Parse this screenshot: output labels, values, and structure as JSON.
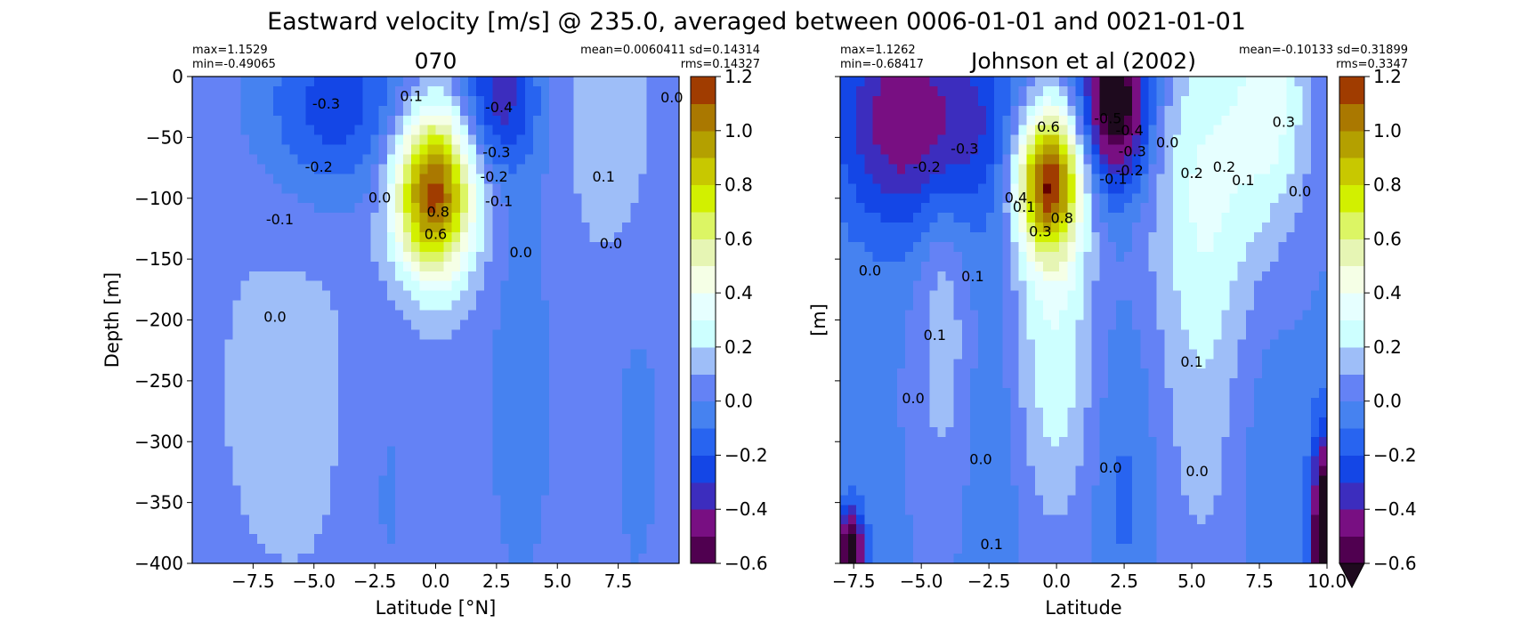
{
  "figure": {
    "title": "Eastward velocity [m/s] @ 235.0, averaged between 0006-01-01 and 0021-01-01"
  },
  "chart_data": [
    {
      "type": "heatmap",
      "subtype": "filled-contour",
      "title": "070",
      "stats_left": [
        "max=1.1529",
        "min=-0.49065"
      ],
      "stats_right": [
        "mean=0.0060411 sd=0.14314",
        "rms=0.14327"
      ],
      "xlabel": "Latitude [°N]",
      "ylabel": "Depth [m]",
      "xlim": [
        -10,
        10
      ],
      "ylim": [
        -400,
        0
      ],
      "xticks": [
        -7.5,
        -5.0,
        -2.5,
        0.0,
        2.5,
        5.0,
        7.5
      ],
      "xtick_labels": [
        "−7.5",
        "−5.0",
        "−2.5",
        "0.0",
        "2.5",
        "5.0",
        "7.5"
      ],
      "yticks": [
        0,
        -50,
        -100,
        -150,
        -200,
        -250,
        -300,
        -350,
        -400
      ],
      "ytick_labels": [
        "0",
        "−50",
        "−100",
        "−150",
        "−200",
        "−250",
        "−300",
        "−350",
        "−400"
      ],
      "show_ytick_labels": true,
      "field": {
        "background": 0.05,
        "bias": 0.01,
        "features": [
          {
            "lat": -0.1,
            "depth": 95,
            "amp": 1.12,
            "wlat": 1.15,
            "wdep": 48
          },
          {
            "lat": -4.0,
            "depth": 25,
            "amp": -0.32,
            "wlat": 2.3,
            "wdep": 55
          },
          {
            "lat": 2.6,
            "depth": 15,
            "amp": -0.4,
            "wlat": 1.1,
            "wdep": 45
          },
          {
            "lat": -6.0,
            "depth": 260,
            "amp": 0.07,
            "wlat": 2.5,
            "wdep": 130
          },
          {
            "lat": 3.5,
            "depth": 260,
            "amp": -0.1,
            "wlat": 1.2,
            "wdep": 150
          },
          {
            "lat": 7.2,
            "depth": 40,
            "amp": 0.12,
            "wlat": 1.2,
            "wdep": 80
          },
          {
            "lat": 8.3,
            "depth": 300,
            "amp": -0.08,
            "wlat": 1.0,
            "wdep": 130
          },
          {
            "lat": -2.0,
            "depth": 330,
            "amp": -0.08,
            "wlat": 1.0,
            "wdep": 120
          }
        ]
      },
      "contour_labels": [
        {
          "lat": -4.5,
          "depth": 23,
          "text": "-0.3"
        },
        {
          "lat": 2.6,
          "depth": 26,
          "text": "-0.4"
        },
        {
          "lat": -1.0,
          "depth": 17,
          "text": "0.1"
        },
        {
          "lat": -4.8,
          "depth": 75,
          "text": "-0.2"
        },
        {
          "lat": -6.4,
          "depth": 118,
          "text": "-0.1"
        },
        {
          "lat": 2.5,
          "depth": 63,
          "text": "-0.3"
        },
        {
          "lat": 2.4,
          "depth": 83,
          "text": "-0.2"
        },
        {
          "lat": 2.6,
          "depth": 103,
          "text": "-0.1"
        },
        {
          "lat": 6.9,
          "depth": 83,
          "text": "0.1"
        },
        {
          "lat": 9.7,
          "depth": 18,
          "text": "0.0"
        },
        {
          "lat": -2.3,
          "depth": 100,
          "text": "0.0"
        },
        {
          "lat": 0.1,
          "depth": 112,
          "text": "0.8"
        },
        {
          "lat": 0.0,
          "depth": 130,
          "text": "0.6"
        },
        {
          "lat": 3.5,
          "depth": 145,
          "text": "0.0"
        },
        {
          "lat": 7.2,
          "depth": 138,
          "text": "0.0"
        },
        {
          "lat": -6.6,
          "depth": 198,
          "text": "0.0"
        }
      ]
    },
    {
      "type": "heatmap",
      "subtype": "filled-contour",
      "title": "Johnson et al (2002)",
      "stats_left": [
        "max=1.1262",
        "min=-0.68417"
      ],
      "stats_right": [
        "mean=-0.10133 sd=0.31899",
        "rms=0.3347"
      ],
      "xlabel": "Latitude",
      "ylabel": "[m]",
      "xlim": [
        -8.0,
        10.0
      ],
      "ylim": [
        -400,
        0
      ],
      "xticks": [
        -7.5,
        -5.0,
        -2.5,
        0.0,
        2.5,
        5.0,
        7.5,
        10.0
      ],
      "xtick_labels": [
        "−7.5",
        "−5.0",
        "−2.5",
        "0.0",
        "2.5",
        "5.0",
        "7.5",
        "10.0"
      ],
      "yticks": [
        0,
        -50,
        -100,
        -150,
        -200,
        -250,
        -300,
        -350,
        -400
      ],
      "show_ytick_labels": false,
      "field": {
        "background": -0.02,
        "bias": 0.01,
        "features": [
          {
            "lat": -0.3,
            "depth": 85,
            "amp": 1.12,
            "wlat": 0.85,
            "wdep": 42
          },
          {
            "lat": -0.1,
            "depth": 210,
            "amp": 0.3,
            "wlat": 1.1,
            "wdep": 110
          },
          {
            "lat": 2.2,
            "depth": 20,
            "amp": -0.75,
            "wlat": 0.9,
            "wdep": 50
          },
          {
            "lat": -4.5,
            "depth": 40,
            "amp": -0.42,
            "wlat": 2.2,
            "wdep": 60
          },
          {
            "lat": -6.5,
            "depth": 20,
            "amp": -0.15,
            "wlat": 1.3,
            "wdep": 80
          },
          {
            "lat": 5.5,
            "depth": 80,
            "amp": 0.28,
            "wlat": 1.6,
            "wdep": 100
          },
          {
            "lat": 8.0,
            "depth": 20,
            "amp": 0.3,
            "wlat": 1.0,
            "wdep": 70
          },
          {
            "lat": -4.2,
            "depth": 200,
            "amp": 0.18,
            "wlat": 0.7,
            "wdep": 100
          },
          {
            "lat": 5.5,
            "depth": 280,
            "amp": 0.14,
            "wlat": 1.3,
            "wdep": 130
          },
          {
            "lat": -2.2,
            "depth": 300,
            "amp": -0.08,
            "wlat": 0.8,
            "wdep": 120
          },
          {
            "lat": 2.5,
            "depth": 330,
            "amp": -0.12,
            "wlat": 0.8,
            "wdep": 100
          },
          {
            "lat": 7.5,
            "depth": 300,
            "amp": -0.08,
            "wlat": 0.9,
            "wdep": 100
          },
          {
            "lat": -7.6,
            "depth": 390,
            "amp": -0.75,
            "wlat": 0.35,
            "wdep": 25
          },
          {
            "lat": 9.9,
            "depth": 380,
            "amp": -0.85,
            "wlat": 0.35,
            "wdep": 60
          }
        ]
      },
      "contour_labels": [
        {
          "lat": -3.4,
          "depth": 60,
          "text": "-0.3"
        },
        {
          "lat": -4.8,
          "depth": 75,
          "text": "-0.2"
        },
        {
          "lat": 1.9,
          "depth": 35,
          "text": "-0.5"
        },
        {
          "lat": 2.7,
          "depth": 45,
          "text": "-0.4"
        },
        {
          "lat": 2.8,
          "depth": 62,
          "text": "-0.3"
        },
        {
          "lat": 2.7,
          "depth": 78,
          "text": "-0.2"
        },
        {
          "lat": 2.1,
          "depth": 85,
          "text": "-0.1"
        },
        {
          "lat": -0.3,
          "depth": 42,
          "text": "0.6"
        },
        {
          "lat": 4.1,
          "depth": 55,
          "text": "0.0"
        },
        {
          "lat": 5.0,
          "depth": 80,
          "text": "0.2"
        },
        {
          "lat": 6.2,
          "depth": 75,
          "text": "0.2"
        },
        {
          "lat": 8.4,
          "depth": 38,
          "text": "0.3"
        },
        {
          "lat": 6.9,
          "depth": 86,
          "text": "0.1"
        },
        {
          "lat": 9.0,
          "depth": 95,
          "text": "0.0"
        },
        {
          "lat": -1.5,
          "depth": 100,
          "text": "0.4"
        },
        {
          "lat": -1.2,
          "depth": 108,
          "text": "0.1"
        },
        {
          "lat": -0.6,
          "depth": 128,
          "text": "0.3"
        },
        {
          "lat": 0.2,
          "depth": 117,
          "text": "0.8"
        },
        {
          "lat": -3.1,
          "depth": 165,
          "text": "0.1"
        },
        {
          "lat": -6.9,
          "depth": 160,
          "text": "0.0"
        },
        {
          "lat": -4.5,
          "depth": 213,
          "text": "0.1"
        },
        {
          "lat": -5.3,
          "depth": 265,
          "text": "0.0"
        },
        {
          "lat": 5.0,
          "depth": 235,
          "text": "0.1"
        },
        {
          "lat": -2.8,
          "depth": 315,
          "text": "0.0"
        },
        {
          "lat": 2.0,
          "depth": 322,
          "text": "0.0"
        },
        {
          "lat": 5.2,
          "depth": 325,
          "text": "0.0"
        },
        {
          "lat": -2.4,
          "depth": 385,
          "text": "0.1"
        }
      ]
    }
  ],
  "colorbar": {
    "boundaries": [
      -0.6,
      -0.5,
      -0.4,
      -0.3,
      -0.2,
      -0.1,
      0.0,
      0.1,
      0.2,
      0.3,
      0.4,
      0.5,
      0.6,
      0.7,
      0.8,
      0.9,
      1.0,
      1.1,
      1.2
    ],
    "colors": [
      "#500050",
      "#780f82",
      "#3c2dbe",
      "#1446e6",
      "#2864f0",
      "#4682f0",
      "#6482f5",
      "#9ebef8",
      "#cdffff",
      "#e6ffff",
      "#f5ffe6",
      "#e6f5b4",
      "#dcf564",
      "#d2f000",
      "#c8c800",
      "#b4a000",
      "#aa7800",
      "#a03c00",
      "#781400",
      "#640000"
    ],
    "ticks": [
      -0.6,
      -0.4,
      -0.2,
      0.0,
      0.2,
      0.4,
      0.6,
      0.8,
      1.0,
      1.2
    ],
    "tick_labels": [
      "−0.6",
      "−0.4",
      "−0.2",
      "0.0",
      "0.2",
      "0.4",
      "0.6",
      "0.8",
      "1.0",
      "1.2"
    ],
    "extend_min_color": "#1e0a1e",
    "extend_max_color": "#640000"
  }
}
